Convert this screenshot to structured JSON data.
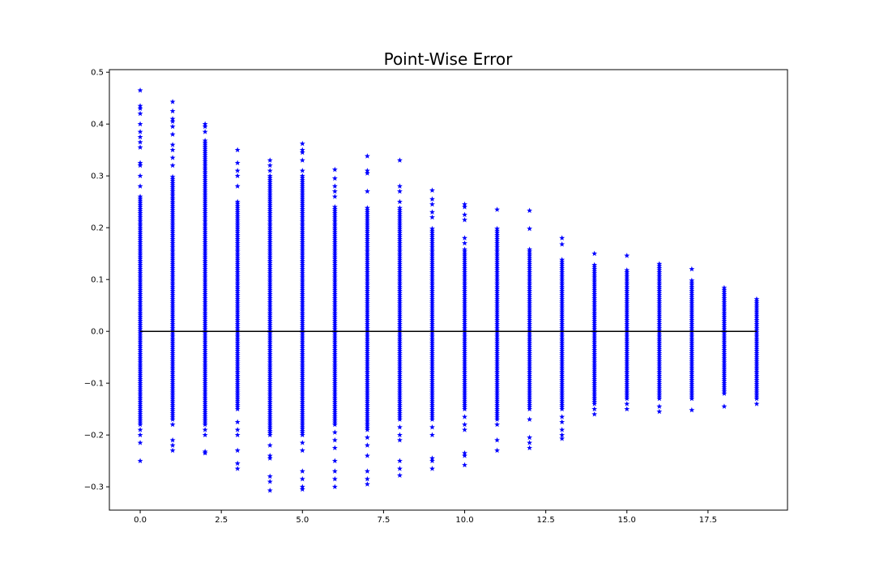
{
  "chart_data": {
    "type": "scatter",
    "title": "Point-Wise Error",
    "xlabel": "",
    "ylabel": "",
    "xlim": [
      -0.95,
      19.95
    ],
    "ylim": [
      -0.345,
      0.505
    ],
    "xticks": [
      0.0,
      2.5,
      5.0,
      7.5,
      10.0,
      12.5,
      15.0,
      17.5
    ],
    "xtick_labels": [
      "0.0",
      "2.5",
      "5.0",
      "7.5",
      "10.0",
      "12.5",
      "15.0",
      "17.5"
    ],
    "yticks": [
      -0.3,
      -0.2,
      -0.1,
      0.0,
      0.1,
      0.2,
      0.3,
      0.4,
      0.5
    ],
    "ytick_labels": [
      "−0.3",
      "−0.2",
      "−0.1",
      "0.0",
      "0.1",
      "0.2",
      "0.3",
      "0.4",
      "0.5"
    ],
    "grid": false,
    "marker": "star",
    "marker_color": "#0000ff",
    "reference_line": {
      "y": 0.0,
      "x_range": [
        0,
        19
      ],
      "color": "#000000"
    },
    "series": [
      {
        "x": 0,
        "dense_range": [
          -0.18,
          0.26
        ],
        "outliers": [
          0.465,
          0.435,
          0.43,
          0.42,
          0.4,
          0.385,
          0.375,
          0.365,
          0.355,
          0.325,
          0.32,
          0.3,
          0.28,
          -0.19,
          -0.2,
          -0.215,
          -0.25
        ]
      },
      {
        "x": 1,
        "dense_range": [
          -0.17,
          0.3
        ],
        "outliers": [
          0.443,
          0.425,
          0.41,
          0.405,
          0.395,
          0.38,
          0.36,
          0.35,
          0.335,
          0.32,
          -0.18,
          -0.21,
          -0.22,
          -0.23
        ]
      },
      {
        "x": 2,
        "dense_range": [
          -0.18,
          0.37
        ],
        "outliers": [
          0.4,
          0.395,
          0.385,
          -0.19,
          -0.2,
          -0.232,
          -0.235
        ]
      },
      {
        "x": 3,
        "dense_range": [
          -0.15,
          0.25
        ],
        "outliers": [
          0.35,
          0.325,
          0.31,
          0.3,
          0.28,
          -0.175,
          -0.19,
          -0.2,
          -0.23,
          -0.255,
          -0.265
        ]
      },
      {
        "x": 4,
        "dense_range": [
          -0.2,
          0.3
        ],
        "outliers": [
          0.33,
          0.32,
          0.31,
          -0.22,
          -0.24,
          -0.245,
          -0.28,
          -0.29,
          -0.307
        ]
      },
      {
        "x": 5,
        "dense_range": [
          -0.2,
          0.3
        ],
        "outliers": [
          0.362,
          0.35,
          0.345,
          0.33,
          0.31,
          -0.215,
          -0.23,
          -0.27,
          -0.285,
          -0.3,
          -0.305
        ]
      },
      {
        "x": 6,
        "dense_range": [
          -0.18,
          0.24
        ],
        "outliers": [
          0.312,
          0.295,
          0.28,
          0.27,
          0.26,
          -0.195,
          -0.21,
          -0.225,
          -0.25,
          -0.27,
          -0.285,
          -0.3
        ]
      },
      {
        "x": 7,
        "dense_range": [
          -0.19,
          0.24
        ],
        "outliers": [
          0.338,
          0.31,
          0.305,
          0.27,
          -0.205,
          -0.22,
          -0.24,
          -0.27,
          -0.285,
          -0.295
        ]
      },
      {
        "x": 8,
        "dense_range": [
          -0.17,
          0.24
        ],
        "outliers": [
          0.33,
          0.28,
          0.27,
          0.25,
          -0.185,
          -0.2,
          -0.21,
          -0.25,
          -0.265,
          -0.278
        ]
      },
      {
        "x": 9,
        "dense_range": [
          -0.17,
          0.2
        ],
        "outliers": [
          0.272,
          0.255,
          0.245,
          0.23,
          0.22,
          -0.185,
          -0.2,
          -0.245,
          -0.25,
          -0.265
        ]
      },
      {
        "x": 10,
        "dense_range": [
          -0.15,
          0.16
        ],
        "outliers": [
          0.245,
          0.24,
          0.225,
          0.215,
          0.18,
          0.17,
          -0.165,
          -0.18,
          -0.19,
          -0.235,
          -0.24,
          -0.258
        ]
      },
      {
        "x": 11,
        "dense_range": [
          -0.17,
          0.2
        ],
        "outliers": [
          0.235,
          -0.18,
          -0.21,
          -0.23
        ]
      },
      {
        "x": 12,
        "dense_range": [
          -0.15,
          0.16
        ],
        "outliers": [
          0.233,
          0.198,
          -0.17,
          -0.205,
          -0.215,
          -0.225
        ]
      },
      {
        "x": 13,
        "dense_range": [
          -0.15,
          0.14
        ],
        "outliers": [
          0.18,
          0.168,
          -0.165,
          -0.175,
          -0.19,
          -0.2,
          -0.207
        ]
      },
      {
        "x": 14,
        "dense_range": [
          -0.14,
          0.13
        ],
        "outliers": [
          0.15,
          -0.15,
          -0.16
        ]
      },
      {
        "x": 15,
        "dense_range": [
          -0.13,
          0.12
        ],
        "outliers": [
          0.146,
          -0.14,
          -0.15
        ]
      },
      {
        "x": 16,
        "dense_range": [
          -0.13,
          0.13
        ],
        "outliers": [
          -0.145,
          -0.155
        ]
      },
      {
        "x": 17,
        "dense_range": [
          -0.13,
          0.1
        ],
        "outliers": [
          0.12,
          -0.152
        ]
      },
      {
        "x": 18,
        "dense_range": [
          -0.12,
          0.085
        ],
        "outliers": [
          -0.145
        ]
      },
      {
        "x": 19,
        "dense_range": [
          -0.13,
          0.063
        ],
        "outliers": [
          -0.14
        ]
      }
    ]
  }
}
